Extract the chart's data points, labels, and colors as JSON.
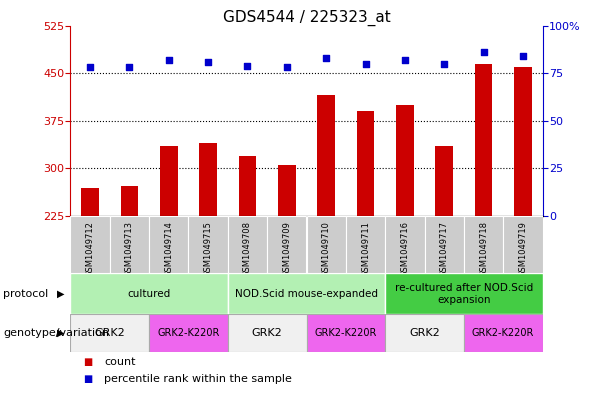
{
  "title": "GDS4544 / 225323_at",
  "samples": [
    "GSM1049712",
    "GSM1049713",
    "GSM1049714",
    "GSM1049715",
    "GSM1049708",
    "GSM1049709",
    "GSM1049710",
    "GSM1049711",
    "GSM1049716",
    "GSM1049717",
    "GSM1049718",
    "GSM1049719"
  ],
  "counts": [
    270,
    272,
    335,
    340,
    320,
    305,
    415,
    390,
    400,
    335,
    465,
    460
  ],
  "percentiles": [
    78,
    78,
    82,
    81,
    79,
    78,
    83,
    80,
    82,
    80,
    86,
    84
  ],
  "ylim_left": [
    225,
    525
  ],
  "ylim_right": [
    0,
    100
  ],
  "yticks_left": [
    225,
    300,
    375,
    450,
    525
  ],
  "yticks_right": [
    0,
    25,
    50,
    75,
    100
  ],
  "bar_color": "#cc0000",
  "dot_color": "#0000cc",
  "hline_values": [
    300,
    375,
    450
  ],
  "protocols": [
    {
      "label": "cultured",
      "start": 0,
      "end": 4,
      "color": "#b3f0b3"
    },
    {
      "label": "NOD.Scid mouse-expanded",
      "start": 4,
      "end": 8,
      "color": "#b3f0b3"
    },
    {
      "label": "re-cultured after NOD.Scid\nexpansion",
      "start": 8,
      "end": 12,
      "color": "#44cc44"
    }
  ],
  "genotypes": [
    {
      "label": "GRK2",
      "start": 0,
      "end": 2,
      "color": "#f0f0f0"
    },
    {
      "label": "GRK2-K220R",
      "start": 2,
      "end": 4,
      "color": "#ee66ee"
    },
    {
      "label": "GRK2",
      "start": 4,
      "end": 6,
      "color": "#f0f0f0"
    },
    {
      "label": "GRK2-K220R",
      "start": 6,
      "end": 8,
      "color": "#ee66ee"
    },
    {
      "label": "GRK2",
      "start": 8,
      "end": 10,
      "color": "#f0f0f0"
    },
    {
      "label": "GRK2-K220R",
      "start": 10,
      "end": 12,
      "color": "#ee66ee"
    }
  ],
  "protocol_row_label": "protocol",
  "genotype_row_label": "genotype/variation",
  "legend_count_label": "count",
  "legend_percentile_label": "percentile rank within the sample",
  "bar_width": 0.45,
  "sample_bg_color": "#cccccc",
  "title_fontsize": 11,
  "tick_fontsize": 8,
  "sample_fontsize": 6,
  "annot_fontsize": 8,
  "row_label_fontsize": 8,
  "legend_fontsize": 8
}
